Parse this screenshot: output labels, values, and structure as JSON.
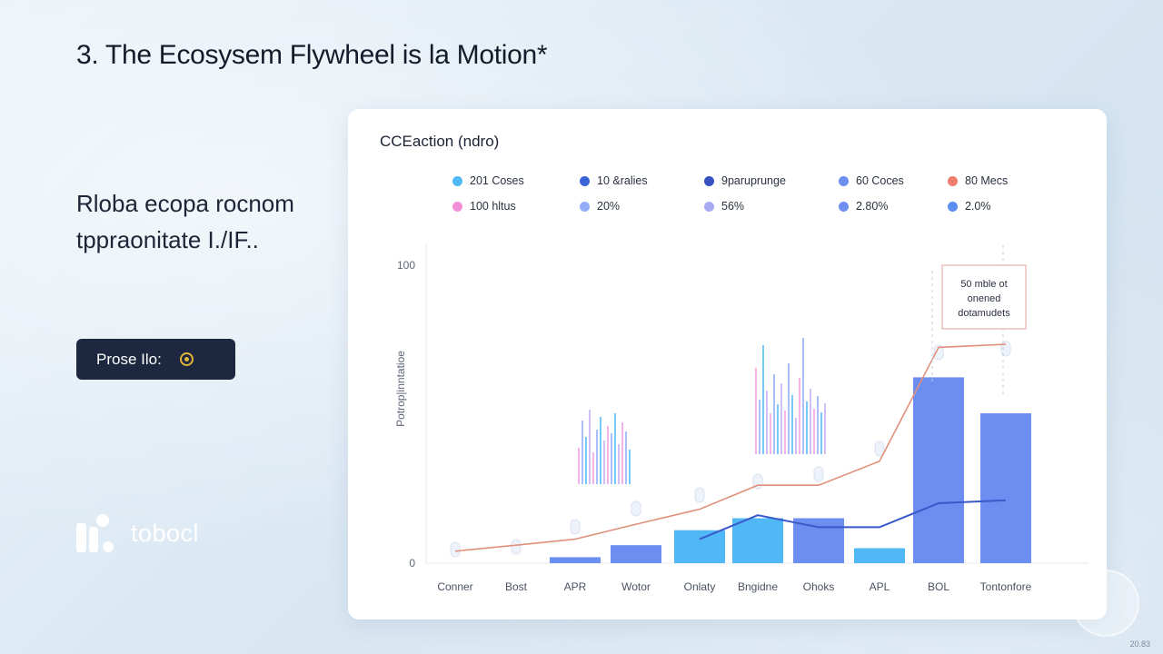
{
  "slide": {
    "title": "3. The Ecosysem Flywheel is la Motion*",
    "subtitle": "Rloba ecopa rocnom tppraonitate I./IF..",
    "cta_label": "Prose Ilo:",
    "logo_text": "tobocl",
    "corner_text": "20.83"
  },
  "colors": {
    "accent_dark": "#1d2740",
    "bar_blue": "#6b8ef0",
    "bar_cyan": "#4fb8f5",
    "line_salmon": "#e0917c",
    "line_navy": "#3a59c9"
  },
  "chart_data": {
    "type": "bar",
    "title": "CCEaction (ndro)",
    "ylabel": "Potrop|inntatioe",
    "ylim": [
      0,
      100
    ],
    "y_ticks": [
      0,
      100
    ],
    "categories": [
      "Conner",
      "Bost",
      "APR",
      "Wotor",
      "Onlaty",
      "Bngidne",
      "Ohoks",
      "APL",
      "BOL",
      "Tontonfore"
    ],
    "legend": [
      {
        "label": "201 Coses",
        "color": "#4fb8f5"
      },
      {
        "label": "10 &ralies",
        "color": "#3b63d8"
      },
      {
        "label": "9paruprunge",
        "color": "#3551c4"
      },
      {
        "label": "60 Coces",
        "color": "#6f8ff0"
      },
      {
        "label": "80 Mecs",
        "color": "#ef7d6c"
      },
      {
        "label": "100 hltus",
        "color": "#f08fd8"
      },
      {
        "label": "20%",
        "color": "#93aef6"
      },
      {
        "label": "56%",
        "color": "#a7a9f2"
      },
      {
        "label": "2.80%",
        "color": "#6f8ff0"
      },
      {
        "label": "2.0%",
        "color": "#5b8ef0"
      }
    ],
    "series": [
      {
        "kind": "bar",
        "values": [
          0,
          0,
          2,
          6,
          11,
          15,
          15,
          5,
          62,
          50
        ]
      },
      {
        "kind": "line",
        "values": [
          4,
          6,
          8,
          13,
          18,
          26,
          26,
          34,
          72,
          73
        ]
      },
      {
        "kind": "line",
        "values": [
          null,
          null,
          null,
          null,
          8,
          16,
          12,
          12,
          20,
          21
        ]
      }
    ],
    "annotation": "50 mble ot onened dotamudets"
  }
}
